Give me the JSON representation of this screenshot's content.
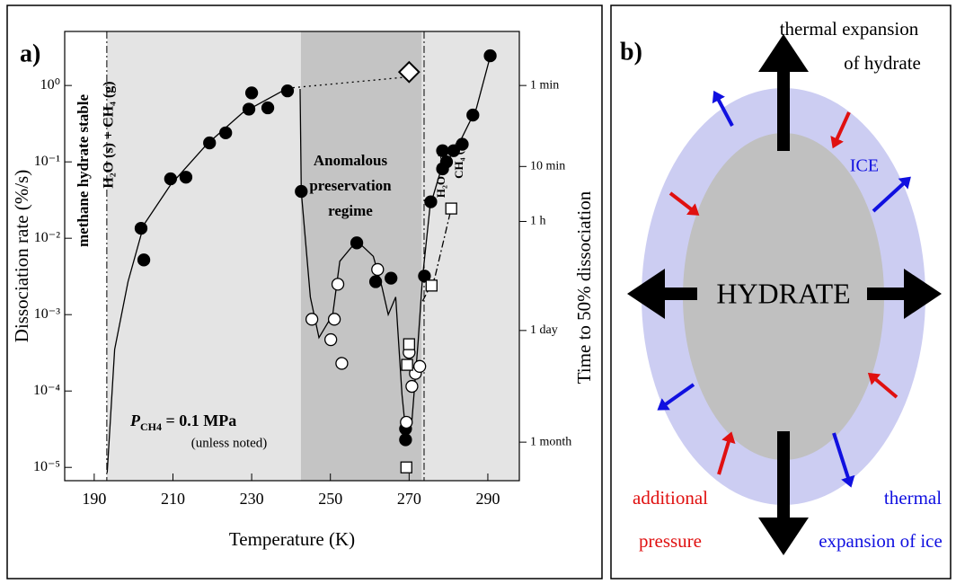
{
  "chart_data": {
    "type": "scatter",
    "panel_label": "a)",
    "xlabel": "Temperature (K)",
    "ylabel": "Dissociation rate (%/s)",
    "y2label": "Time to 50% dissociation",
    "xlim": [
      182.5,
      298
    ],
    "xticks": [
      190,
      210,
      230,
      250,
      270,
      290
    ],
    "ylim": [
      6.7e-06,
      5.1
    ],
    "ylog": true,
    "yticks": [
      {
        "value": 1,
        "label": "10⁰"
      },
      {
        "value": 0.1,
        "label": "10⁻¹"
      },
      {
        "value": 0.01,
        "label": "10⁻²"
      },
      {
        "value": 0.001,
        "label": "10⁻³"
      },
      {
        "value": 0.0001,
        "label": "10⁻⁴"
      },
      {
        "value": 1e-05,
        "label": "10⁻⁵"
      }
    ],
    "y2lim": [
      6.7e-06,
      5.1
    ],
    "y2ticks": [
      {
        "value": 1,
        "label": "1 min"
      },
      {
        "value": 0.087,
        "label": "10 min"
      },
      {
        "value": 0.0166,
        "label": "1 h"
      },
      {
        "value": 0.00062,
        "label": "1 day"
      },
      {
        "value": 2.14e-05,
        "label": "1 month"
      }
    ],
    "regions": [
      {
        "x": [
          193.2,
          242.5
        ],
        "color": "#e4e4e4"
      },
      {
        "x": [
          242.5,
          273.2
        ],
        "color": "#c4c4c4"
      },
      {
        "x": [
          273.2,
          298
        ],
        "color": "#e4e4e4"
      }
    ],
    "boundaries": [
      193.2,
      273.8
    ],
    "annotations": {
      "stable": "methane hydrate stable",
      "stable_phase": "H₂O (s) + CH₄ (g)",
      "regime": [
        "Anomalous",
        "preservation",
        "regime"
      ],
      "melt": [
        "H₂O (l) +",
        "CH₄ (g)"
      ],
      "pressure": {
        "main": "P",
        "sub": "CH4",
        "rest": " = 0.1 MPa"
      },
      "note": "(unless noted)"
    },
    "lines": [
      {
        "style": "solid",
        "color": "#000000",
        "x": [
          193.3,
          195.2,
          198.6,
          202.6,
          209.4,
          218.6,
          227.7,
          239.1
        ],
        "values": [
          8.5e-06,
          0.00035,
          0.0027,
          0.015,
          0.05,
          0.17,
          0.44,
          0.92
        ]
      },
      {
        "style": "dotted",
        "color": "#000000",
        "x": [
          239.1,
          270
        ],
        "values": [
          0.92,
          1.3
        ]
      },
      {
        "style": "solid",
        "color": "#000000",
        "x": [
          242.3,
          242.6,
          244.9,
          247.1,
          250.6,
          252.4,
          256.7,
          260.9,
          263.1,
          264.7,
          266.6,
          268.2,
          269.3,
          270.7,
          272.3,
          273.4,
          275.3,
          278,
          282.6,
          287.1,
          290.6
        ],
        "values": [
          0.9,
          0.041,
          0.0017,
          0.0005,
          0.001,
          0.005,
          0.0093,
          0.0058,
          0.0023,
          0.001,
          0.0017,
          9e-05,
          2.4e-05,
          4e-05,
          0.00045,
          0.003,
          0.026,
          0.076,
          0.17,
          0.5,
          2.4
        ]
      },
      {
        "style": "dashdot",
        "color": "#000000",
        "x": [
          273.4,
          276.5,
          280.7
        ],
        "values": [
          0.0015,
          0.003,
          0.0245
        ]
      }
    ],
    "series": [
      {
        "marker": "circle",
        "color": "#000000",
        "fill": "#000000",
        "x": [
          201.9,
          202.6,
          209.4,
          213.3,
          219.3,
          223.4,
          229.3,
          230,
          234.1,
          239.1,
          242.6,
          256.7,
          261.5,
          265.4,
          273.9,
          275.5,
          278.5,
          279.5,
          278.5,
          281.3,
          283.5,
          286.2,
          290.6,
          269.1,
          269.1
        ],
        "values": [
          0.0135,
          0.0052,
          0.06,
          0.063,
          0.177,
          0.24,
          0.49,
          0.8,
          0.51,
          0.85,
          0.041,
          0.0087,
          0.0027,
          0.003,
          0.0032,
          0.03,
          0.081,
          0.1,
          0.14,
          0.14,
          0.17,
          0.41,
          2.45,
          3.2e-05,
          2.3e-05
        ]
      },
      {
        "marker": "circle",
        "color": "#000000",
        "fill": "#ffffff",
        "x": [
          245.3,
          250.1,
          251,
          251.9,
          252.9,
          262,
          270,
          270.7,
          271.6,
          272.7,
          269.3
        ],
        "values": [
          0.00087,
          0.00047,
          0.00087,
          0.0025,
          0.00023,
          0.0039,
          0.00032,
          0.000115,
          0.00017,
          0.00021,
          3.9e-05
        ]
      },
      {
        "marker": "square",
        "color": "#000000",
        "fill": "#ffffff",
        "x": [
          270,
          269.5,
          269.3,
          275.7,
          280.7
        ],
        "values": [
          0.00041,
          0.00022,
          1e-05,
          0.0024,
          0.0245
        ]
      },
      {
        "marker": "diamond",
        "color": "#000000",
        "fill": "#ffffff",
        "x": [
          270
        ],
        "values": [
          1.5
        ]
      }
    ]
  },
  "diagram": {
    "panel_label": "b)",
    "top": [
      "thermal expansion",
      "of hydrate"
    ],
    "ice": "ICE",
    "core": "HYDRATE",
    "pressure": [
      "additional",
      "pressure"
    ],
    "ice_expansion": [
      "thermal",
      "expansion of ice"
    ]
  }
}
